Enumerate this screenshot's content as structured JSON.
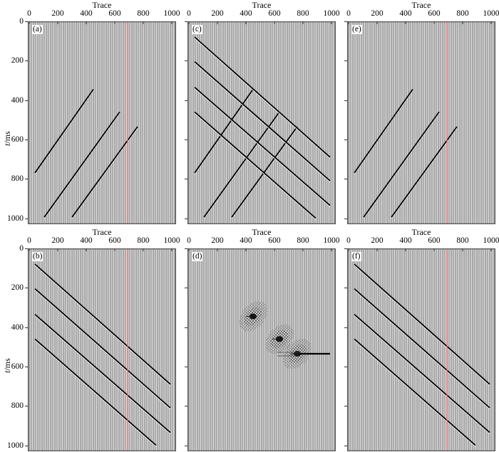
{
  "figure": {
    "xlabel": "Trace",
    "ylabel": "t/ms",
    "xticks": [
      "0",
      "200",
      "400",
      "600",
      "800",
      "1000"
    ],
    "yticks": [
      "0",
      "200",
      "400",
      "600",
      "800",
      "1000"
    ],
    "highlight_trace": 700,
    "highlight_color": "#f07070"
  },
  "chart_data": [
    {
      "type": "seismic-wiggle",
      "panel": "(a)",
      "xlabel": "Trace",
      "ylabel": "t/ms",
      "xlim": [
        0,
        1040
      ],
      "ylim": [
        1030,
        0
      ],
      "red_marker_trace": 700,
      "events": [
        {
          "kind": "linear",
          "x": [
            50,
            460
          ],
          "t": [
            770,
            345
          ]
        },
        {
          "kind": "linear",
          "x": [
            115,
            645
          ],
          "t": [
            995,
            460
          ]
        },
        {
          "kind": "linear",
          "x": [
            310,
            770
          ],
          "t": [
            995,
            535
          ]
        }
      ]
    },
    {
      "type": "seismic-wiggle",
      "panel": "(b)",
      "xlabel": "Trace",
      "ylabel": "t/ms",
      "xlim": [
        0,
        1040
      ],
      "ylim": [
        1030,
        0
      ],
      "red_marker_trace": 700,
      "events": [
        {
          "kind": "linear",
          "x": [
            50,
            1000
          ],
          "t": [
            80,
            690
          ]
        },
        {
          "kind": "linear",
          "x": [
            50,
            1000
          ],
          "t": [
            205,
            810
          ]
        },
        {
          "kind": "linear",
          "x": [
            50,
            1000
          ],
          "t": [
            335,
            935
          ]
        },
        {
          "kind": "linear",
          "x": [
            50,
            900
          ],
          "t": [
            460,
            1000
          ]
        }
      ]
    },
    {
      "type": "seismic-wiggle",
      "panel": "(c)",
      "xlabel": "Trace",
      "ylabel": "",
      "xlim": [
        0,
        1040
      ],
      "ylim": [
        1030,
        0
      ],
      "events": [
        {
          "kind": "linear",
          "x": [
            50,
            460
          ],
          "t": [
            770,
            345
          ]
        },
        {
          "kind": "linear",
          "x": [
            115,
            645
          ],
          "t": [
            995,
            460
          ]
        },
        {
          "kind": "linear",
          "x": [
            310,
            770
          ],
          "t": [
            995,
            535
          ]
        },
        {
          "kind": "linear",
          "x": [
            50,
            1000
          ],
          "t": [
            80,
            690
          ]
        },
        {
          "kind": "linear",
          "x": [
            50,
            1000
          ],
          "t": [
            205,
            810
          ]
        },
        {
          "kind": "linear",
          "x": [
            50,
            1000
          ],
          "t": [
            335,
            935
          ]
        },
        {
          "kind": "linear",
          "x": [
            50,
            900
          ],
          "t": [
            460,
            1000
          ]
        }
      ]
    },
    {
      "type": "seismic-wiggle",
      "panel": "(d)",
      "xlabel": "Trace",
      "ylabel": "",
      "xlim": [
        0,
        1040
      ],
      "ylim": [
        1030,
        0
      ],
      "events": [
        {
          "kind": "focused-energy",
          "x": 460,
          "t": 345
        },
        {
          "kind": "focused-energy",
          "x": 645,
          "t": 460
        },
        {
          "kind": "focused-energy",
          "x": 770,
          "t": 535
        },
        {
          "kind": "horizontal-spike",
          "x": [
            790,
            1000
          ],
          "t": [
            535,
            535
          ]
        }
      ]
    },
    {
      "type": "seismic-wiggle",
      "panel": "(e)",
      "xlabel": "Trace",
      "ylabel": "",
      "xlim": [
        0,
        1040
      ],
      "ylim": [
        1030,
        0
      ],
      "red_marker_trace": 700,
      "events": [
        {
          "kind": "linear",
          "x": [
            50,
            460
          ],
          "t": [
            770,
            345
          ]
        },
        {
          "kind": "linear",
          "x": [
            115,
            645
          ],
          "t": [
            995,
            460
          ]
        },
        {
          "kind": "linear",
          "x": [
            310,
            770
          ],
          "t": [
            995,
            535
          ]
        }
      ]
    },
    {
      "type": "seismic-wiggle",
      "panel": "(f)",
      "xlabel": "Trace",
      "ylabel": "",
      "xlim": [
        0,
        1040
      ],
      "ylim": [
        1030,
        0
      ],
      "red_marker_trace": 700,
      "events": [
        {
          "kind": "linear",
          "x": [
            50,
            1000
          ],
          "t": [
            80,
            690
          ]
        },
        {
          "kind": "linear",
          "x": [
            50,
            1000
          ],
          "t": [
            205,
            810
          ]
        },
        {
          "kind": "linear",
          "x": [
            50,
            1000
          ],
          "t": [
            335,
            935
          ]
        },
        {
          "kind": "linear",
          "x": [
            50,
            900
          ],
          "t": [
            460,
            1000
          ]
        }
      ]
    }
  ],
  "panels": {
    "a": {
      "label": "(a)"
    },
    "b": {
      "label": "(b)"
    },
    "c": {
      "label": "(c)"
    },
    "d": {
      "label": "(d)"
    },
    "e": {
      "label": "(e)"
    },
    "f": {
      "label": "(f)"
    }
  }
}
